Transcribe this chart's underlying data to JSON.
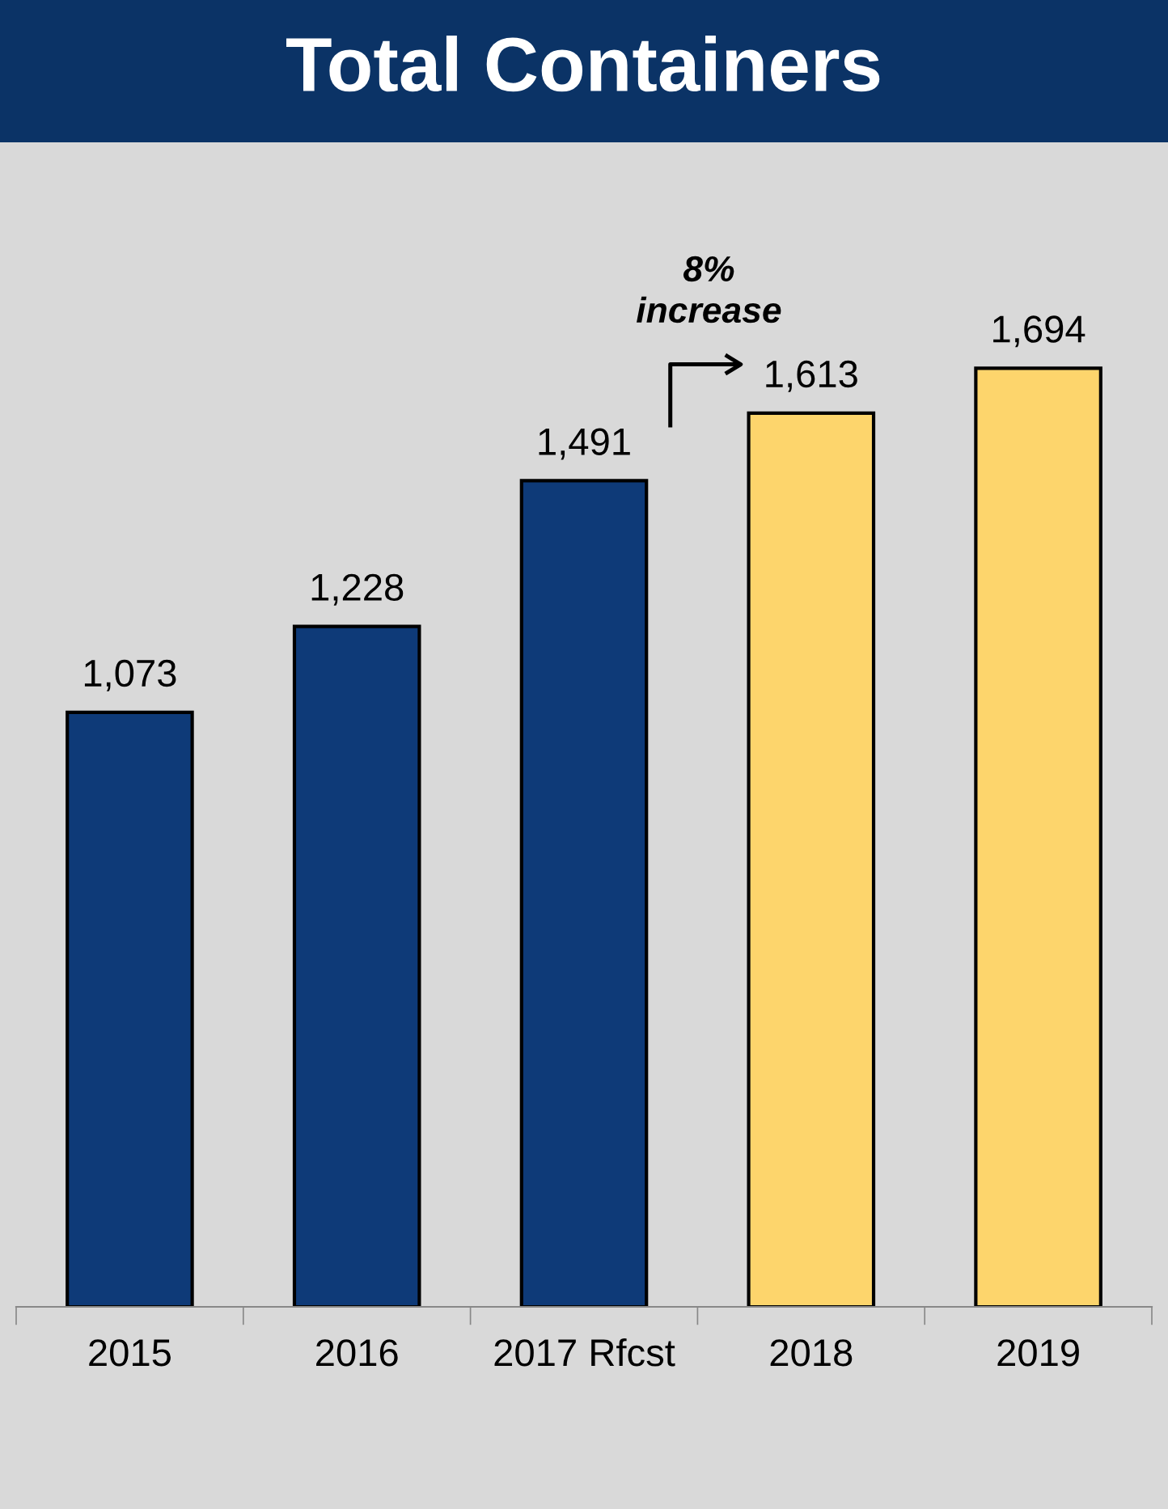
{
  "chart_data": {
    "type": "bar",
    "title": "Total Containers",
    "categories": [
      "2015",
      "2016",
      "2017 Rfcst",
      "2018",
      "2019"
    ],
    "values": [
      1073,
      1228,
      1491,
      1613,
      1694
    ],
    "value_labels": [
      "1,073",
      "1,228",
      "1,491",
      "1,613",
      "1,694"
    ],
    "colors": [
      "#0e3a78",
      "#0e3a78",
      "#0e3a78",
      "#fdd56c",
      "#fdd56c"
    ],
    "tick_labels": "x",
    "grid": false,
    "annotations": [
      "8%\nincrease"
    ]
  }
}
